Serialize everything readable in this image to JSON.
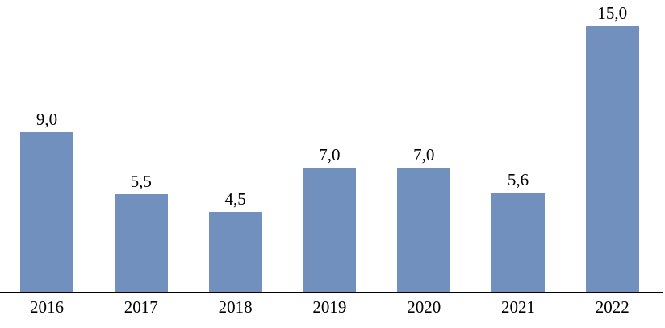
{
  "chart_data": {
    "type": "bar",
    "categories": [
      "2016",
      "2017",
      "2018",
      "2019",
      "2020",
      "2021",
      "2022"
    ],
    "values": [
      9.0,
      5.5,
      4.5,
      7.0,
      7.0,
      5.6,
      15.0
    ],
    "value_labels": [
      "9,0",
      "5,5",
      "4,5",
      "7,0",
      "7,0",
      "5,6",
      "15,0"
    ],
    "title": "",
    "xlabel": "",
    "ylabel": "",
    "ylim": [
      0,
      15
    ],
    "grid": false,
    "legend": false,
    "decimal_separator": ",",
    "bar_color": "#7290BE",
    "axis_color": "#000000",
    "label_color": "#000000",
    "background_color": "#FFFFFF"
  }
}
